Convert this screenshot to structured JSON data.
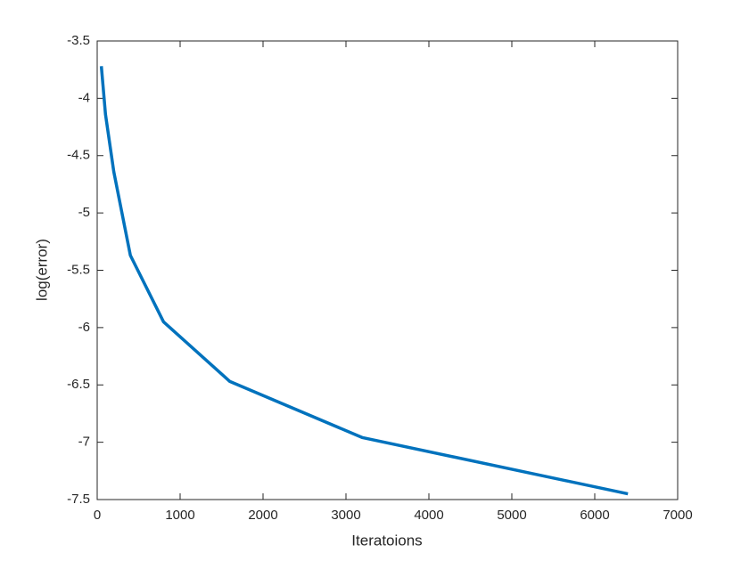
{
  "chart_data": {
    "type": "line",
    "x_label": "Iteratoions",
    "y_label": "log(error)",
    "x": [
      50,
      100,
      200,
      400,
      800,
      1600,
      3200,
      6400
    ],
    "series": [
      {
        "color": "#0072bd",
        "values": [
          -3.72,
          -4.14,
          -4.64,
          -5.37,
          -5.95,
          -6.47,
          -6.96,
          -7.45
        ]
      }
    ],
    "xlim": [
      0,
      7000
    ],
    "xticks": [
      0,
      1000,
      2000,
      3000,
      4000,
      5000,
      6000,
      7000
    ],
    "ylim": [
      -7.5,
      -3.5
    ],
    "yticks": [
      -7.5,
      -7,
      -6.5,
      -6,
      -5.5,
      -5,
      -4.5,
      -4,
      -3.5
    ],
    "grid": false
  }
}
